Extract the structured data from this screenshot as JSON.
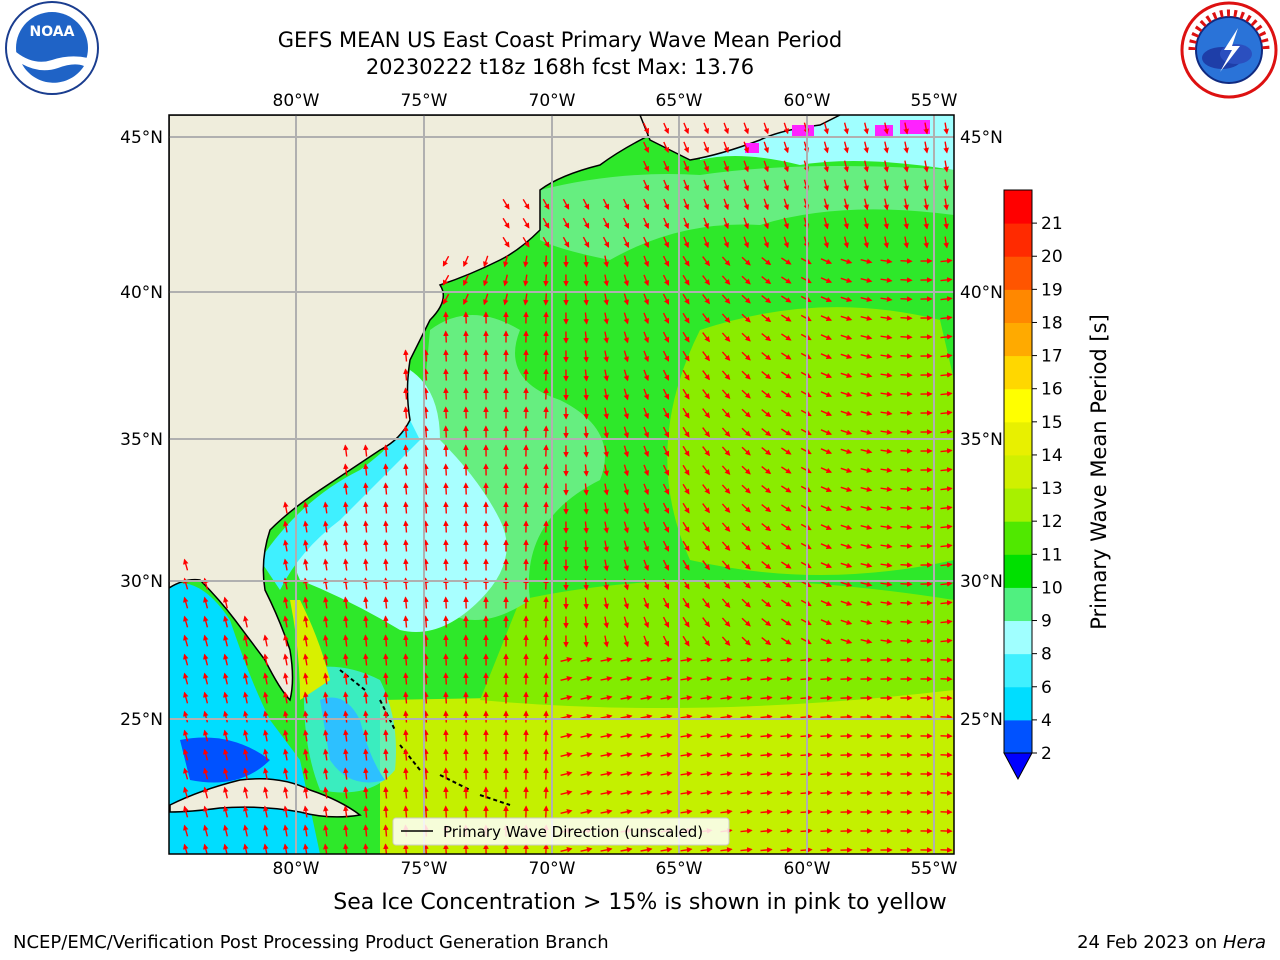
{
  "title": {
    "line1": "GEFS MEAN US East Coast Primary Wave Mean Period",
    "line2": "20230222 t18z 168h fcst   Max: 13.76"
  },
  "logos": {
    "left": "noaa-logo",
    "right": "national-weather-service-logo"
  },
  "map": {
    "lon_ticks": [
      "80°W",
      "75°W",
      "70°W",
      "65°W",
      "60°W",
      "55°W"
    ],
    "lat_ticks": [
      "45°N",
      "40°N",
      "35°N",
      "30°N",
      "25°N"
    ],
    "extent": {
      "lon": [
        -85,
        -54.5
      ],
      "lat": [
        20.5,
        46
      ]
    },
    "legend_label": "Primary Wave Direction (unscaled)",
    "arrow_color": "#ff0000",
    "land_color": "#efeddc"
  },
  "colorbar": {
    "label": "Primary Wave Mean Period [s]",
    "ticks": [
      "2",
      "4",
      "6",
      "8",
      "9",
      "10",
      "11",
      "12",
      "13",
      "14",
      "15",
      "16",
      "17",
      "18",
      "19",
      "20",
      "21"
    ],
    "colors": [
      "#0052ff",
      "#00ddff",
      "#40f0ff",
      "#a0ffff",
      "#50f080",
      "#00e000",
      "#50e800",
      "#a8f000",
      "#d0f000",
      "#e8f000",
      "#ffff00",
      "#ffd700",
      "#ffaa00",
      "#ff8800",
      "#ff5500",
      "#ff2a00",
      "#ff0000"
    ],
    "under_color": "#0000ff"
  },
  "caption": "Sea Ice Concentration > 15% is shown in pink to yellow",
  "footer": {
    "left": "NCEP/EMC/Verification Post Processing Product Generation Branch",
    "right_prefix": "24 Feb 2023 on ",
    "right_italic": "Hera"
  }
}
